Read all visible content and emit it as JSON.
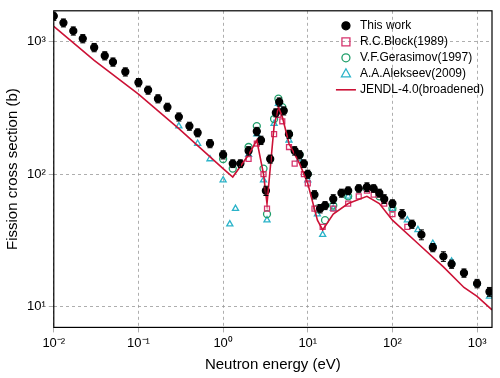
{
  "chart_data": {
    "type": "scatter",
    "x_label": "Neutron energy (eV)",
    "y_label": "Fission cross section (b)",
    "log": true,
    "grid": true,
    "legend": "upper right",
    "xlim": [
      0.01,
      1500
    ],
    "ylim": [
      7,
      1700
    ],
    "xticks": [
      {
        "value": 0.01,
        "label": "10⁻²"
      },
      {
        "value": 0.1,
        "label": "10⁻¹"
      },
      {
        "value": 1,
        "label": "10⁰"
      },
      {
        "value": 10,
        "label": "10¹"
      },
      {
        "value": 100,
        "label": "10²"
      },
      {
        "value": 1000,
        "label": "10³"
      }
    ],
    "yticks": [
      {
        "value": 10,
        "label": "10¹"
      },
      {
        "value": 100,
        "label": "10²"
      },
      {
        "value": 1000,
        "label": "10³"
      }
    ],
    "series": [
      {
        "name": "This work",
        "type": "scatter",
        "color": "#000000",
        "marker": "filled_circle",
        "x": [
          0.01,
          0.013,
          0.017,
          0.022,
          0.03,
          0.04,
          0.05,
          0.07,
          0.1,
          0.13,
          0.17,
          0.22,
          0.3,
          0.4,
          0.5,
          0.7,
          1.0,
          1.3,
          1.6,
          2.0,
          2.5,
          2.8,
          3.2,
          3.6,
          4.2,
          4.6,
          5.2,
          6,
          7,
          8,
          9,
          10,
          12,
          14,
          16,
          20,
          25,
          30,
          40,
          50,
          60,
          70,
          80,
          100,
          130,
          170,
          220,
          300,
          400,
          500,
          700,
          1000,
          1400
        ],
        "values": [
          1550,
          1380,
          1200,
          1050,
          900,
          780,
          700,
          590,
          490,
          430,
          370,
          320,
          270,
          230,
          205,
          170,
          140,
          120,
          120,
          150,
          210,
          180,
          75,
          130,
          290,
          350,
          300,
          200,
          150,
          140,
          120,
          100,
          70,
          55,
          58,
          65,
          72,
          75,
          78,
          80,
          78,
          72,
          65,
          60,
          50,
          42,
          35,
          28,
          24,
          21,
          18,
          15,
          13
        ],
        "errors": [
          110,
          95,
          85,
          75,
          65,
          55,
          50,
          42,
          35,
          30,
          26,
          22,
          19,
          16,
          14,
          12,
          10,
          8,
          8,
          11,
          15,
          13,
          6,
          9,
          20,
          25,
          21,
          14,
          11,
          10,
          8,
          7,
          5,
          4,
          4,
          5,
          5,
          5,
          5,
          6,
          5,
          5,
          5,
          4,
          4,
          3,
          3,
          2,
          2,
          1.5,
          1.3,
          1.1,
          1
        ]
      },
      {
        "name": "R.C.Block(1989)",
        "type": "scatter",
        "color": "#d6336c",
        "marker": "open_square",
        "x": [
          2,
          2.5,
          3,
          3.3,
          4,
          4.5,
          5,
          6,
          7,
          9,
          10,
          12,
          15,
          20,
          30,
          40,
          50,
          60,
          80,
          100,
          150
        ],
        "values": [
          130,
          170,
          100,
          55,
          200,
          280,
          250,
          160,
          120,
          100,
          85,
          55,
          40,
          55,
          60,
          68,
          75,
          70,
          60,
          50,
          40
        ]
      },
      {
        "name": "V.F.Gerasimov(1997)",
        "type": "scatter",
        "color": "#1f9e6a",
        "marker": "open_circle",
        "x": [
          1,
          1.3,
          2,
          2.5,
          3,
          3.3,
          4,
          4.5,
          5,
          6,
          8,
          10,
          13,
          16,
          20,
          30,
          50,
          70,
          100
        ],
        "values": [
          130,
          110,
          160,
          230,
          110,
          50,
          260,
          370,
          320,
          200,
          140,
          100,
          55,
          45,
          58,
          68,
          78,
          68,
          55
        ]
      },
      {
        "name": "A.A.Alekseev(2009)",
        "type": "scatter",
        "color": "#2bb3c9",
        "marker": "open_triangle",
        "x": [
          0.3,
          0.5,
          0.7,
          1,
          1.2,
          1.4,
          2,
          2.5,
          3,
          3.3,
          4,
          4.5,
          5,
          6,
          8,
          10,
          13,
          15,
          20,
          30,
          50,
          70,
          100,
          150,
          200,
          300,
          500,
          1000,
          1400
        ],
        "values": [
          230,
          170,
          130,
          90,
          42,
          55,
          140,
          200,
          90,
          45,
          240,
          340,
          300,
          180,
          130,
          90,
          50,
          35,
          55,
          68,
          78,
          70,
          55,
          45,
          38,
          30,
          22,
          15,
          12
        ]
      },
      {
        "name": "JENDL-4.0(broadened)",
        "type": "line",
        "color": "#cc1236",
        "marker": "none",
        "line_style": "solid",
        "x": [
          0.01,
          0.03,
          0.1,
          0.3,
          1,
          1.3,
          2,
          2.5,
          3,
          3.3,
          4,
          4.5,
          5,
          6,
          8,
          10,
          13,
          15,
          20,
          30,
          50,
          70,
          100,
          200,
          400,
          700,
          1000,
          1500
        ],
        "values": [
          1300,
          720,
          400,
          220,
          110,
          95,
          140,
          180,
          100,
          60,
          230,
          320,
          270,
          170,
          120,
          85,
          45,
          38,
          50,
          60,
          68,
          60,
          45,
          30,
          20,
          14,
          12,
          9.5
        ]
      }
    ]
  }
}
